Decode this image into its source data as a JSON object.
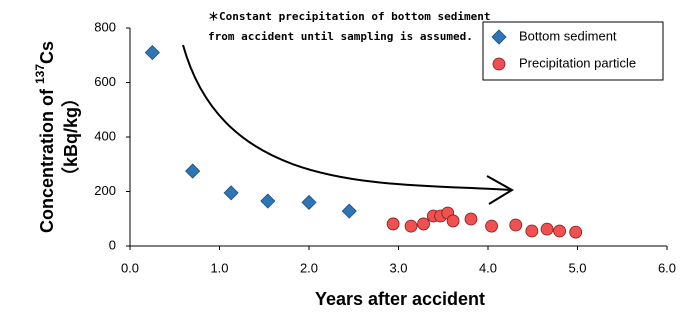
{
  "chart_data": {
    "type": "scatter",
    "xlabel": "Years after accident",
    "ylabel": "Concentration of",
    "ylabel_isotope_mass": "137",
    "ylabel_isotope": "Cs",
    "ylabel_unit": "（kBq/kg）",
    "annotation": [
      "＊Constant precipitation of bottom sediment",
      "from accident until sampling is assumed."
    ],
    "xlim": [
      0,
      6
    ],
    "ylim": [
      0,
      800
    ],
    "xticks": [
      {
        "value": 0,
        "label": "0.0"
      },
      {
        "value": 1,
        "label": "1.0"
      },
      {
        "value": 2,
        "label": "2.0"
      },
      {
        "value": 3,
        "label": "3.0"
      },
      {
        "value": 4,
        "label": "4.0"
      },
      {
        "value": 5,
        "label": "5.0"
      },
      {
        "value": 6,
        "label": "6.0"
      }
    ],
    "yticks": [
      0,
      200,
      400,
      600,
      800
    ],
    "legend": "top-right",
    "series": [
      {
        "name": "Bottom sediment",
        "color": "#2e75b6",
        "marker": "diamond",
        "x": [
          0.25,
          0.7,
          1.13,
          1.54,
          2.0,
          2.45
        ],
        "values": [
          710,
          275,
          195,
          165,
          160,
          128
        ]
      },
      {
        "name": "Precipitation particle",
        "color": "#f0504f",
        "marker": "circle",
        "x": [
          2.94,
          3.14,
          3.28,
          3.39,
          3.47,
          3.55,
          3.61,
          3.81,
          4.04,
          4.31,
          4.49,
          4.66,
          4.8,
          4.98
        ],
        "values": [
          81,
          73,
          81,
          110,
          110,
          121,
          92,
          99,
          73,
          77,
          55,
          62,
          55,
          51
        ]
      }
    ]
  }
}
